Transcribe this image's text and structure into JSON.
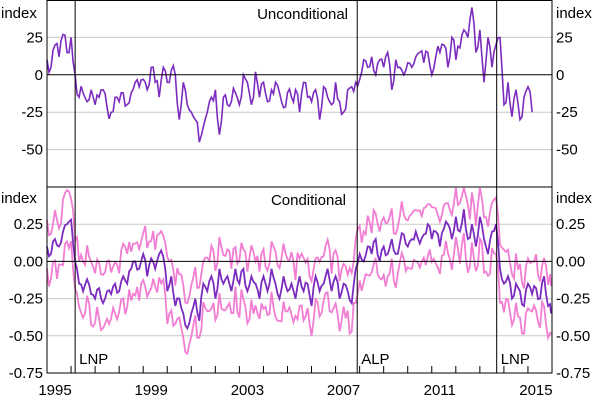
{
  "chart_data": [
    {
      "type": "line",
      "title": "Unconditional",
      "ylabel": "index",
      "ylim": [
        -75,
        50
      ],
      "yticks": [
        "25",
        "0",
        "-25",
        "-50"
      ],
      "ytick_values": [
        25,
        0,
        -25,
        -50
      ],
      "x_start": 1995.0,
      "x_step_years": 0.1667,
      "series": [
        {
          "name": "Unconditional",
          "color": "#7B2CBF",
          "values": [
            10,
            5,
            20,
            12,
            27,
            15,
            25,
            0,
            -15,
            -12,
            -18,
            -10,
            -20,
            -15,
            -10,
            -22,
            -25,
            -15,
            -18,
            -12,
            -20,
            -12,
            -5,
            -8,
            -3,
            -10,
            5,
            -5,
            -15,
            5,
            -5,
            3,
            0,
            -30,
            -5,
            -20,
            -25,
            -30,
            -45,
            -35,
            -25,
            -15,
            -10,
            -40,
            -15,
            -20,
            -18,
            -12,
            -20,
            0,
            -5,
            -20,
            2,
            -15,
            -5,
            -18,
            -10,
            -5,
            -12,
            -22,
            -12,
            -15,
            -10,
            -25,
            -5,
            -15,
            -18,
            -10,
            -30,
            -8,
            -15,
            -20,
            -5,
            -18,
            -25,
            -10,
            -8,
            -5,
            -3,
            10,
            5,
            12,
            0,
            10,
            5,
            15,
            -10,
            10,
            5,
            0,
            8,
            5,
            12,
            15,
            8,
            15,
            0,
            12,
            15,
            20,
            5,
            25,
            10,
            18,
            30,
            25,
            45,
            15,
            30,
            -5,
            25,
            5,
            20,
            25,
            -20,
            -5,
            -28,
            -10,
            -30,
            -15,
            -8,
            -25
          ]
        }
      ]
    },
    {
      "type": "line",
      "title": "Conditional",
      "ylabel": "index",
      "ylim": [
        -0.75,
        0.5
      ],
      "yticks": [
        "0.25",
        "0.00",
        "-0.25",
        "-0.50",
        "-0.75"
      ],
      "ytick_values": [
        0.25,
        0,
        -0.25,
        -0.5,
        -0.75
      ],
      "x_start": 1995.0,
      "x_step_years": 0.1667,
      "band_halfwidth": 0.17,
      "series": [
        {
          "name": "Conditional",
          "color": "#7B2CBF",
          "values": [
            0.1,
            0.05,
            0.15,
            0.1,
            0.2,
            0.25,
            0.28,
            0.0,
            -0.15,
            -0.2,
            -0.12,
            -0.22,
            -0.25,
            -0.18,
            -0.28,
            -0.2,
            -0.22,
            -0.15,
            -0.2,
            -0.1,
            -0.15,
            -0.05,
            0.0,
            -0.05,
            0.05,
            -0.1,
            0.02,
            -0.05,
            0.05,
            0.03,
            -0.2,
            -0.1,
            -0.3,
            -0.25,
            -0.35,
            -0.45,
            -0.35,
            -0.25,
            -0.4,
            -0.15,
            -0.2,
            -0.1,
            -0.25,
            -0.05,
            -0.15,
            -0.1,
            -0.2,
            -0.05,
            -0.15,
            -0.05,
            -0.2,
            -0.1,
            -0.15,
            -0.25,
            -0.1,
            -0.2,
            -0.05,
            -0.15,
            -0.25,
            -0.1,
            -0.2,
            -0.15,
            -0.25,
            -0.1,
            -0.2,
            -0.15,
            -0.3,
            -0.1,
            -0.2,
            -0.15,
            -0.05,
            -0.2,
            -0.1,
            -0.25,
            -0.15,
            -0.2,
            -0.28,
            -0.05,
            0.05,
            0.0,
            0.1,
            0.05,
            0.15,
            0.0,
            0.1,
            0.05,
            0.15,
            0.05,
            0.12,
            0.18,
            0.1,
            0.15,
            0.2,
            0.12,
            0.18,
            0.25,
            0.15,
            0.2,
            0.1,
            0.22,
            0.25,
            0.15,
            0.3,
            0.2,
            0.35,
            0.15,
            0.25,
            0.1,
            0.3,
            0.15,
            0.05,
            0.2,
            0.25,
            -0.05,
            -0.15,
            -0.1,
            -0.25,
            -0.15,
            -0.2,
            -0.3,
            -0.15,
            -0.22,
            -0.18,
            -0.25,
            -0.1,
            -0.3,
            -0.35
          ]
        },
        {
          "name": "Confidence band",
          "color": "#F27ED3"
        }
      ]
    }
  ],
  "xaxis": {
    "xlim": [
      1995,
      2016
    ],
    "tick_labels": [
      "1995",
      "1999",
      "2003",
      "2007",
      "2011",
      "2015"
    ],
    "tick_values": [
      1995,
      1999,
      2003,
      2007,
      2011,
      2015
    ]
  },
  "annotations": {
    "events": [
      {
        "label": "LNP",
        "year": 1996.17
      },
      {
        "label": "ALP",
        "year": 2007.9
      },
      {
        "label": "LNP",
        "year": 2013.7
      }
    ]
  }
}
